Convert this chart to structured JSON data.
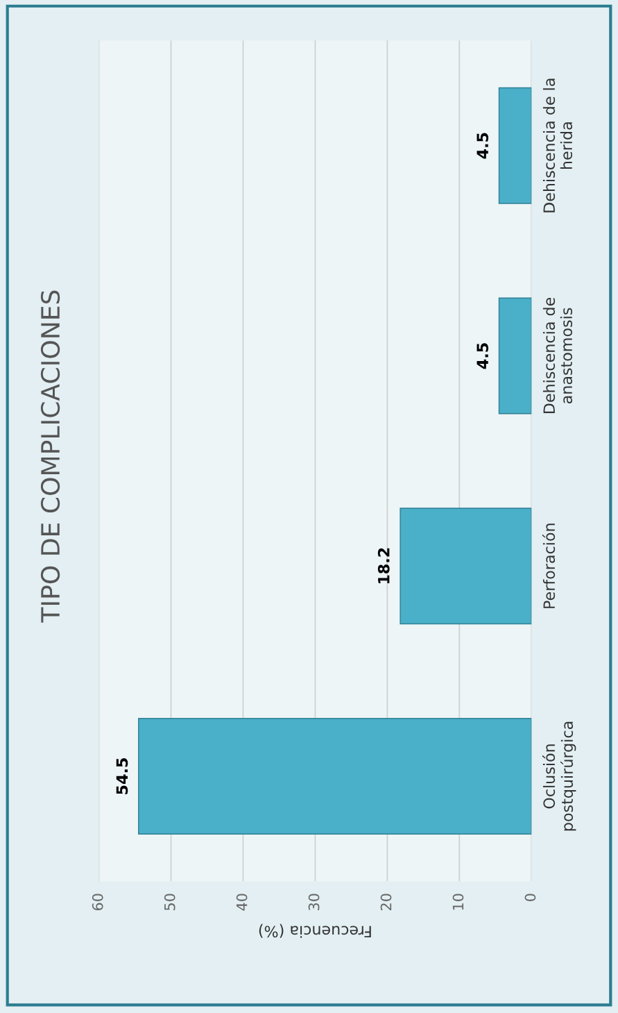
{
  "chart_data": {
    "type": "bar",
    "orientation": "horizontal",
    "title": "TIPO DE COMPLICACIONES",
    "xlabel": "Frecuencia (%)",
    "categories": [
      "Dehiscencia de la\nherida",
      "Dehiscencia de\nanastomosis",
      "Perforación",
      "Oclusión\npostquirúrgica"
    ],
    "values": [
      4.5,
      4.5,
      18.2,
      54.5
    ],
    "color": "#4aafc8",
    "data_labels": true,
    "xlim": [
      60,
      0
    ],
    "xticks": [
      0,
      10,
      20,
      30,
      40,
      50,
      60
    ],
    "grid": "x"
  }
}
